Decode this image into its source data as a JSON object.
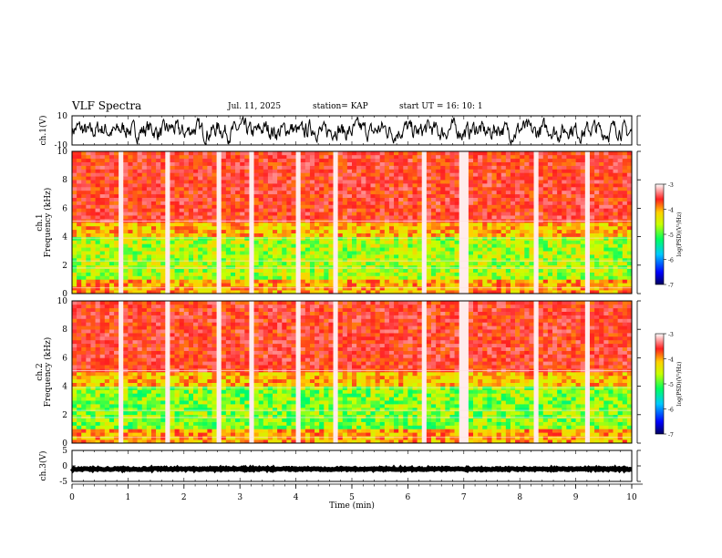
{
  "header": {
    "title": "VLF Spectra",
    "date": "Jul. 11, 2025",
    "station": "station= KAP",
    "start": "start UT = 16: 10: 1"
  },
  "colors": {
    "spec_low": "#00007a",
    "spec_mid": "#00ff00",
    "spec_high": "#ff2020",
    "trace": "#000000"
  },
  "chart_data": [
    {
      "type": "line",
      "name": "ch1-waveform",
      "ylabel": "ch.1(V)",
      "xlim": [
        0,
        10
      ],
      "ylim": [
        -10,
        10
      ],
      "y_ticks": [
        "10",
        "-10"
      ],
      "description_values": "noisy waveform mostly between -8 and 8 V"
    },
    {
      "type": "heatmap",
      "name": "ch1-spectrogram",
      "ylabel": "ch.1\nFrequency (kHz)",
      "ylabel_lines": [
        "ch.1",
        "Frequency (kHz)"
      ],
      "xlim": [
        0,
        10
      ],
      "ylim": [
        0,
        10
      ],
      "y_ticks": [
        "0",
        "2",
        "4",
        "6",
        "8",
        "10"
      ],
      "colorbar": {
        "label": "log(PSD)(V²/Hz)",
        "range": [
          -7,
          -3
        ],
        "ticks": [
          "-3",
          "-4",
          "-5",
          "-6",
          "-7"
        ]
      }
    },
    {
      "type": "heatmap",
      "name": "ch2-spectrogram",
      "ylabel": "ch.2\nFrequency (kHz)",
      "ylabel_lines": [
        "ch.2",
        "Frequency (kHz)"
      ],
      "xlim": [
        0,
        10
      ],
      "ylim": [
        0,
        10
      ],
      "y_ticks": [
        "0",
        "2",
        "4",
        "6",
        "8",
        "10"
      ],
      "colorbar": {
        "label": "log(PSD)(V²/Hz)",
        "range": [
          -7,
          -3
        ],
        "ticks": [
          "-3",
          "-4",
          "-5",
          "-6",
          "-7"
        ]
      }
    },
    {
      "type": "line",
      "name": "ch3-waveform",
      "ylabel": "ch.3(V)",
      "xlim": [
        0,
        10
      ],
      "ylim": [
        -5,
        5
      ],
      "y_ticks": [
        "5",
        "0",
        "-5"
      ],
      "description_values": "near-constant trace around -1 V"
    }
  ],
  "x_axis": {
    "label": "Time (min)",
    "ticks": [
      "0",
      "1",
      "2",
      "3",
      "4",
      "5",
      "6",
      "7",
      "8",
      "9",
      "10"
    ]
  }
}
